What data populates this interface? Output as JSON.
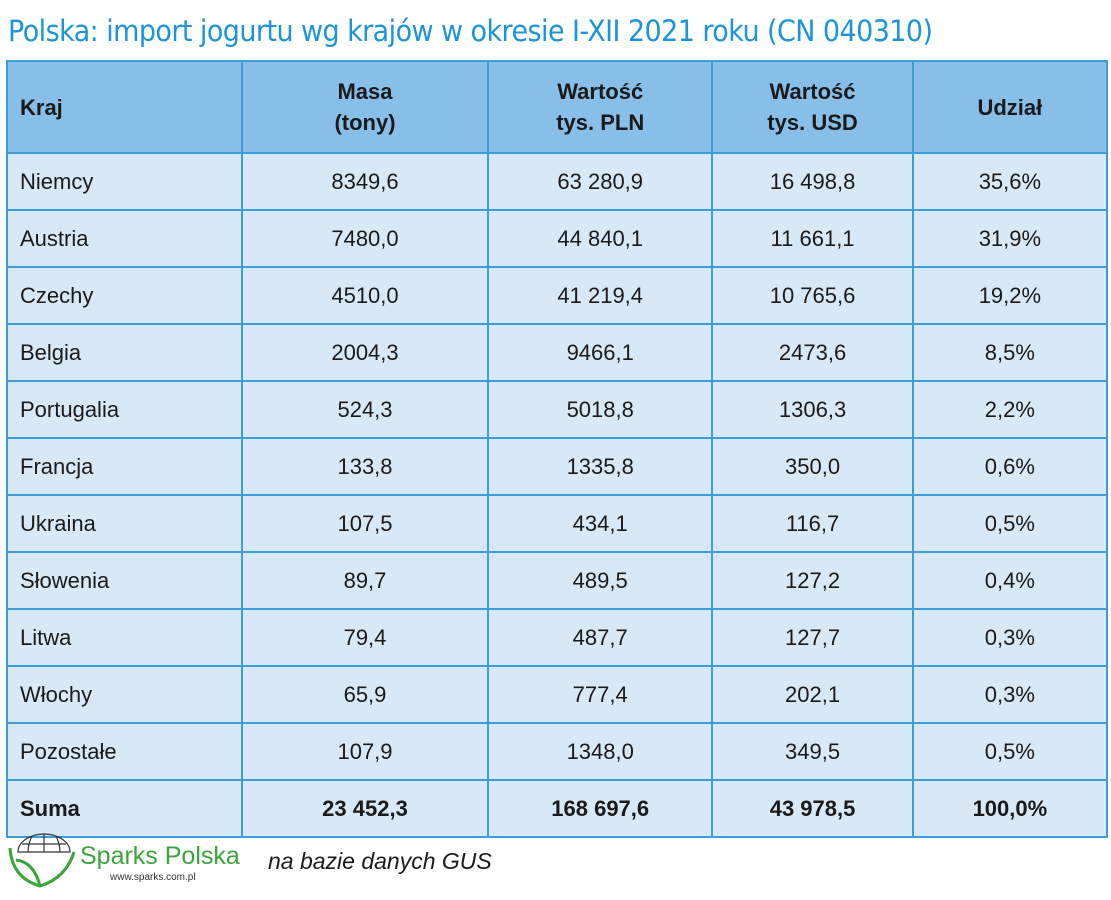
{
  "title": "Polska: import jogurtu wg krajów w okresie I-XII 2021 roku (CN 040310)",
  "headers": [
    [
      "Kraj",
      ""
    ],
    [
      "Masa",
      "(tony)"
    ],
    [
      "Wartość",
      "tys. PLN"
    ],
    [
      "Wartość",
      "tys. USD"
    ],
    [
      "Udział",
      ""
    ]
  ],
  "rows": [
    [
      "Niemcy",
      "8349,6",
      "63 280,9",
      "16 498,8",
      "35,6%"
    ],
    [
      "Austria",
      "7480,0",
      "44 840,1",
      "11 661,1",
      "31,9%"
    ],
    [
      "Czechy",
      "4510,0",
      "41 219,4",
      "10 765,6",
      "19,2%"
    ],
    [
      "Belgia",
      "2004,3",
      "9466,1",
      "2473,6",
      "8,5%"
    ],
    [
      "Portugalia",
      "524,3",
      "5018,8",
      "1306,3",
      "2,2%"
    ],
    [
      "Francja",
      "133,8",
      "1335,8",
      "350,0",
      "0,6%"
    ],
    [
      "Ukraina",
      "107,5",
      "434,1",
      "116,7",
      "0,5%"
    ],
    [
      "Słowenia",
      "89,7",
      "489,5",
      "127,2",
      "0,4%"
    ],
    [
      "Litwa",
      "79,4",
      "487,7",
      "127,7",
      "0,3%"
    ],
    [
      "Włochy",
      "65,9",
      "777,4",
      "202,1",
      "0,3%"
    ],
    [
      "Pozostałe",
      "107,9",
      "1348,0",
      "349,5",
      "0,5%"
    ]
  ],
  "total": [
    "Suma",
    "23 452,3",
    "168 697,6",
    "43 978,5",
    "100,0%"
  ],
  "logo": {
    "name": "Sparks Polska",
    "url": "www.sparks.com.pl"
  },
  "source": "na bazie danych GUS",
  "colors": {
    "title": "#1d93d8",
    "header_bg": "#88bfe9",
    "row_bg": "#d7e8f7",
    "border": "#3d9ddb",
    "logo_green": "#3aa63a"
  }
}
